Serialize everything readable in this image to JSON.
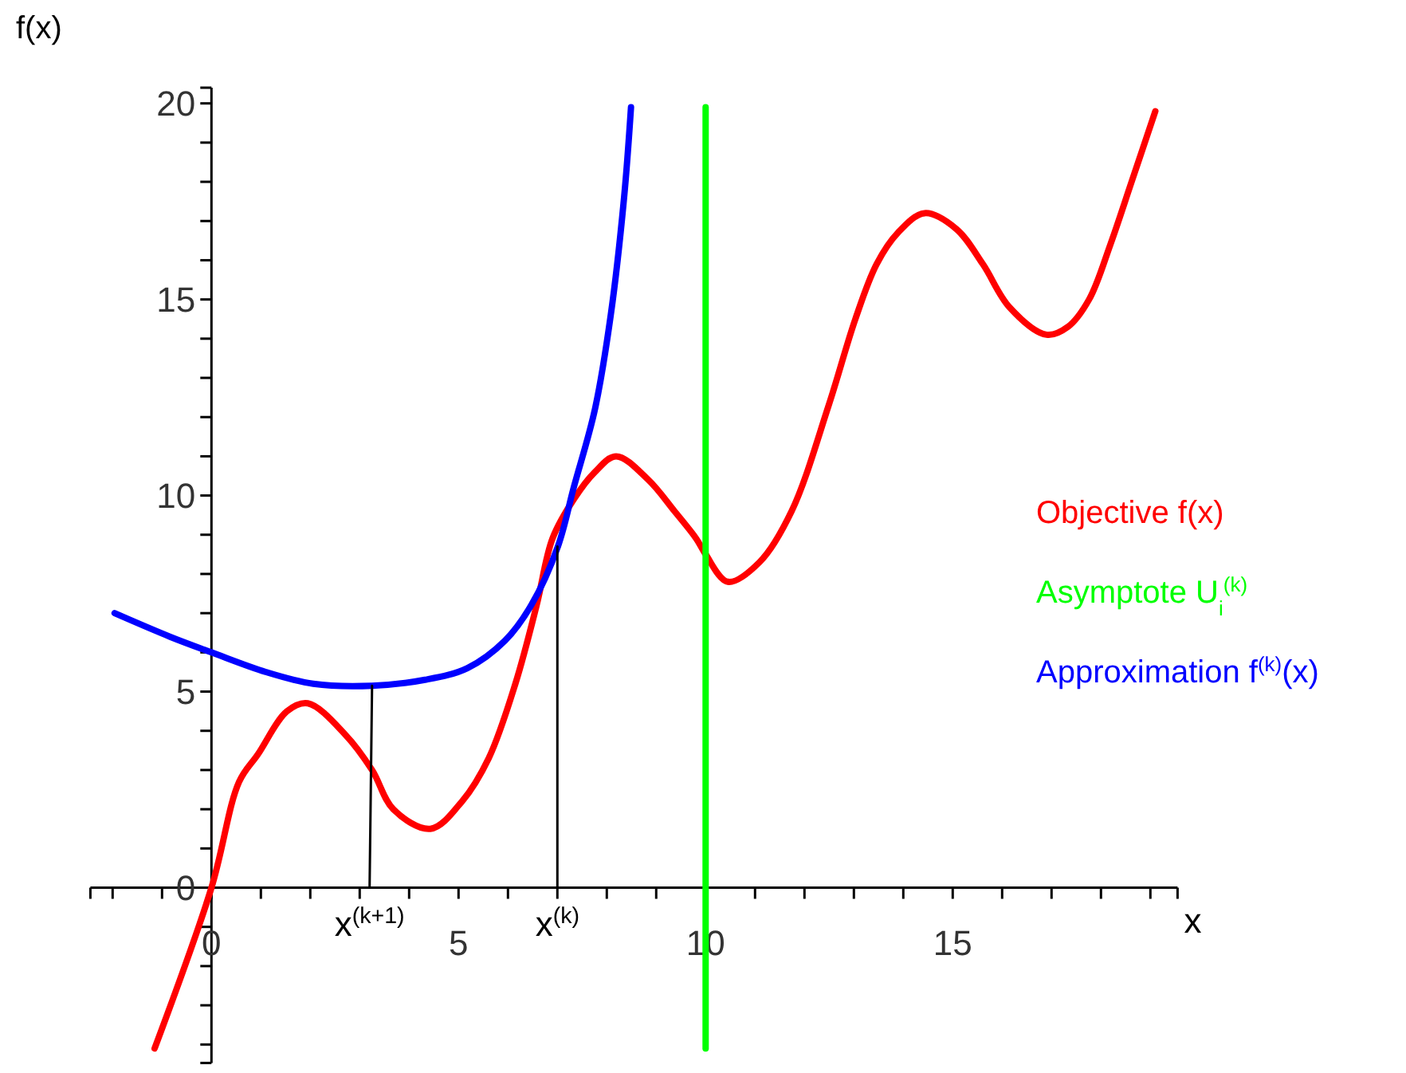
{
  "chart_data": {
    "type": "line",
    "xlabel": "x",
    "ylabel": "f(x)",
    "legend": "right",
    "xlim": [
      -2.45,
      19.55
    ],
    "ylim": [
      -4.47,
      20.4
    ],
    "xticks": [
      {
        "value": -2,
        "label": null
      },
      {
        "value": -1,
        "label": null
      },
      0,
      {
        "value": 1,
        "label": null
      },
      {
        "value": 2,
        "label": null
      },
      {
        "value": 3,
        "label": null
      },
      {
        "value": 4,
        "label": null
      },
      5,
      {
        "value": 6,
        "label": null
      },
      {
        "value": 7,
        "label": null
      },
      {
        "value": 8,
        "label": null
      },
      {
        "value": 9,
        "label": null
      },
      10,
      {
        "value": 11,
        "label": null
      },
      {
        "value": 12,
        "label": null
      },
      {
        "value": 13,
        "label": null
      },
      {
        "value": 14,
        "label": null
      },
      15,
      {
        "value": 16,
        "label": null
      },
      {
        "value": 17,
        "label": null
      },
      {
        "value": 18,
        "label": null
      },
      {
        "value": 19,
        "label": null
      }
    ],
    "yticks": [
      {
        "value": -4,
        "label": null
      },
      {
        "value": -3,
        "label": null
      },
      {
        "value": -2,
        "label": null
      },
      {
        "value": -1,
        "label": null
      },
      0,
      {
        "value": 1,
        "label": null
      },
      {
        "value": 2,
        "label": null
      },
      {
        "value": 3,
        "label": null
      },
      {
        "value": 4,
        "label": null
      },
      5,
      {
        "value": 6,
        "label": null
      },
      {
        "value": 7,
        "label": null
      },
      {
        "value": 8,
        "label": null
      },
      {
        "value": 9,
        "label": null
      },
      10,
      {
        "value": 11,
        "label": null
      },
      {
        "value": 12,
        "label": null
      },
      {
        "value": 13,
        "label": null
      },
      {
        "value": 14,
        "label": null
      },
      15,
      {
        "value": 16,
        "label": null
      },
      {
        "value": 17,
        "label": null
      },
      {
        "value": 18,
        "label": null
      },
      {
        "value": 19,
        "label": null
      },
      20
    ],
    "series": [
      {
        "name": "Objective f(x)",
        "color": "#ff0000",
        "x": [
          -1.15,
          0,
          0.56,
          0.94,
          1.53,
          1.95,
          2.71,
          3.25,
          3.68,
          4.43,
          5.07,
          5.61,
          6.15,
          6.58,
          6.9,
          7.33,
          7.76,
          8.19,
          8.84,
          9.37,
          9.81,
          10,
          10.45,
          11.09,
          11.74,
          12.49,
          13.03,
          13.46,
          13.89,
          14.43,
          15.07,
          15.61,
          16.15,
          16.9,
          17.33,
          17.76,
          18.19,
          18.62,
          19.1
        ],
        "values": [
          -4.1,
          0,
          2.7,
          3.4,
          4.5,
          4.7,
          3.9,
          3,
          2,
          1.5,
          2.2,
          3.3,
          5.2,
          7.2,
          8.9,
          9.9,
          10.6,
          11,
          10.4,
          9.6,
          8.9,
          8.5,
          7.8,
          8.3,
          9.6,
          12.3,
          14.5,
          15.9,
          16.7,
          17.2,
          16.8,
          15.9,
          14.8,
          14.1,
          14.3,
          15,
          16.4,
          18,
          19.8
        ]
      },
      {
        "name": "Asymptote U$_{i}$$^{(k)}$",
        "color": "#00ff00",
        "x": [
          10,
          10
        ],
        "values": [
          -4.1,
          19.9
        ]
      },
      {
        "name": "Approximation f$^{(k)}$(x)",
        "color": "#0000ff",
        "x": [
          -1.96,
          -0.84,
          0,
          1.1,
          2.06,
          3.25,
          4.32,
          5.18,
          5.94,
          6.47,
          7.01,
          7.33,
          7.76,
          8.08,
          8.35,
          8.49
        ],
        "values": [
          7,
          6.4,
          6,
          5.5,
          5.2,
          5.15,
          5.3,
          5.6,
          6.3,
          7.2,
          8.7,
          10.2,
          12.2,
          14.6,
          17.6,
          19.9
        ]
      },
      {
        "color": "#000000",
        "x": [
          3.2,
          3.25
        ],
        "values": [
          0,
          5.15
        ]
      },
      {
        "color": "#000000",
        "x": [
          7,
          7
        ],
        "values": [
          0,
          8.7
        ]
      }
    ],
    "annotations": [
      {
        "text": "x$^{(k+1)}$",
        "x": 3.2,
        "y": 0
      },
      {
        "text": "x$^{(k)}$",
        "x": 7,
        "y": 0
      }
    ]
  }
}
